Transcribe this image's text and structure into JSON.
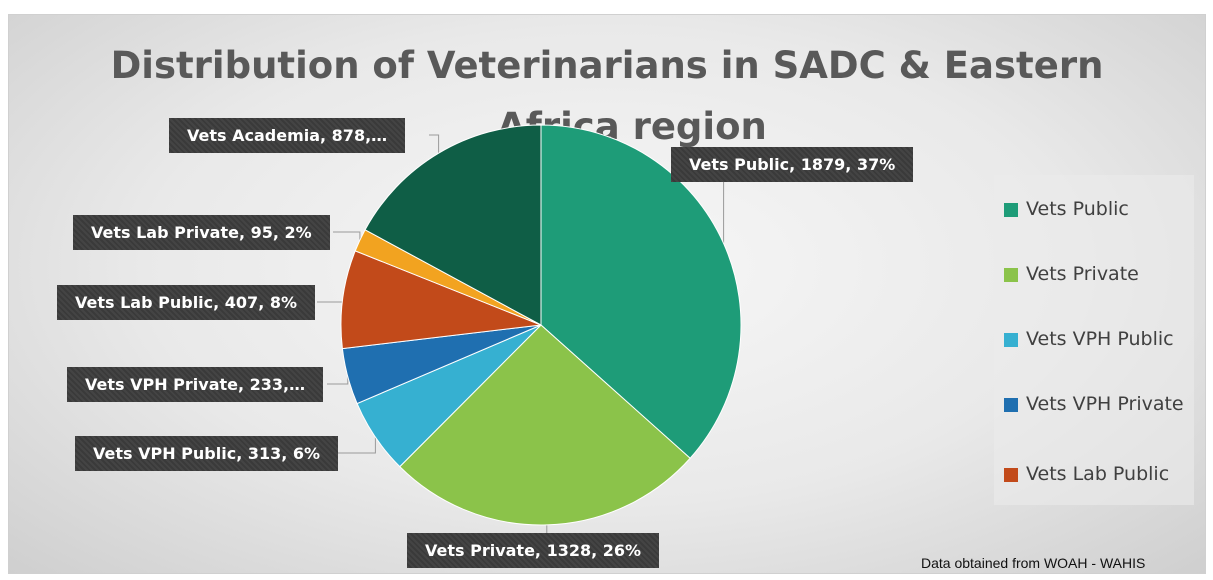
{
  "chart_data": {
    "type": "pie",
    "title": "Distribution of Veterinarians in SADC & Eastern Africa region",
    "title_lines": [
      "Distribution of Veterinarians in SADC & Eastern",
      "Africa region"
    ],
    "slices": [
      {
        "name": "Vets Public",
        "value": 1879,
        "percent": 37,
        "label": "Vets Public, 1879, 37%",
        "color": "#1e9c78"
      },
      {
        "name": "Vets Private",
        "value": 1328,
        "percent": 26,
        "label": "Vets Private, 1328, 26%",
        "color": "#8bc34a"
      },
      {
        "name": "Vets VPH Public",
        "value": 313,
        "percent": 6,
        "label": "Vets VPH Public, 313, 6%",
        "color": "#36b0d1"
      },
      {
        "name": "Vets VPH Private",
        "value": 233,
        "percent": 5,
        "label": "Vets VPH Private, 233,…",
        "color": "#1f6fb0"
      },
      {
        "name": "Vets Lab Public",
        "value": 407,
        "percent": 8,
        "label": "Vets Lab Public, 407, 8%",
        "color": "#c24a1a"
      },
      {
        "name": "Vets Lab Private",
        "value": 95,
        "percent": 2,
        "label": "Vets Lab Private, 95, 2%",
        "color": "#f2a320"
      },
      {
        "name": "Vets Academia",
        "value": 878,
        "percent": 17,
        "label": "Vets Academia, 878,…",
        "color": "#0f5e46"
      }
    ],
    "legend": [
      "Vets Public",
      "Vets Private",
      "Vets VPH Public",
      "Vets VPH Private",
      "Vets Lab Public"
    ],
    "legend_position": "right",
    "source_note": "Data obtained from WOAH - WAHIS"
  }
}
